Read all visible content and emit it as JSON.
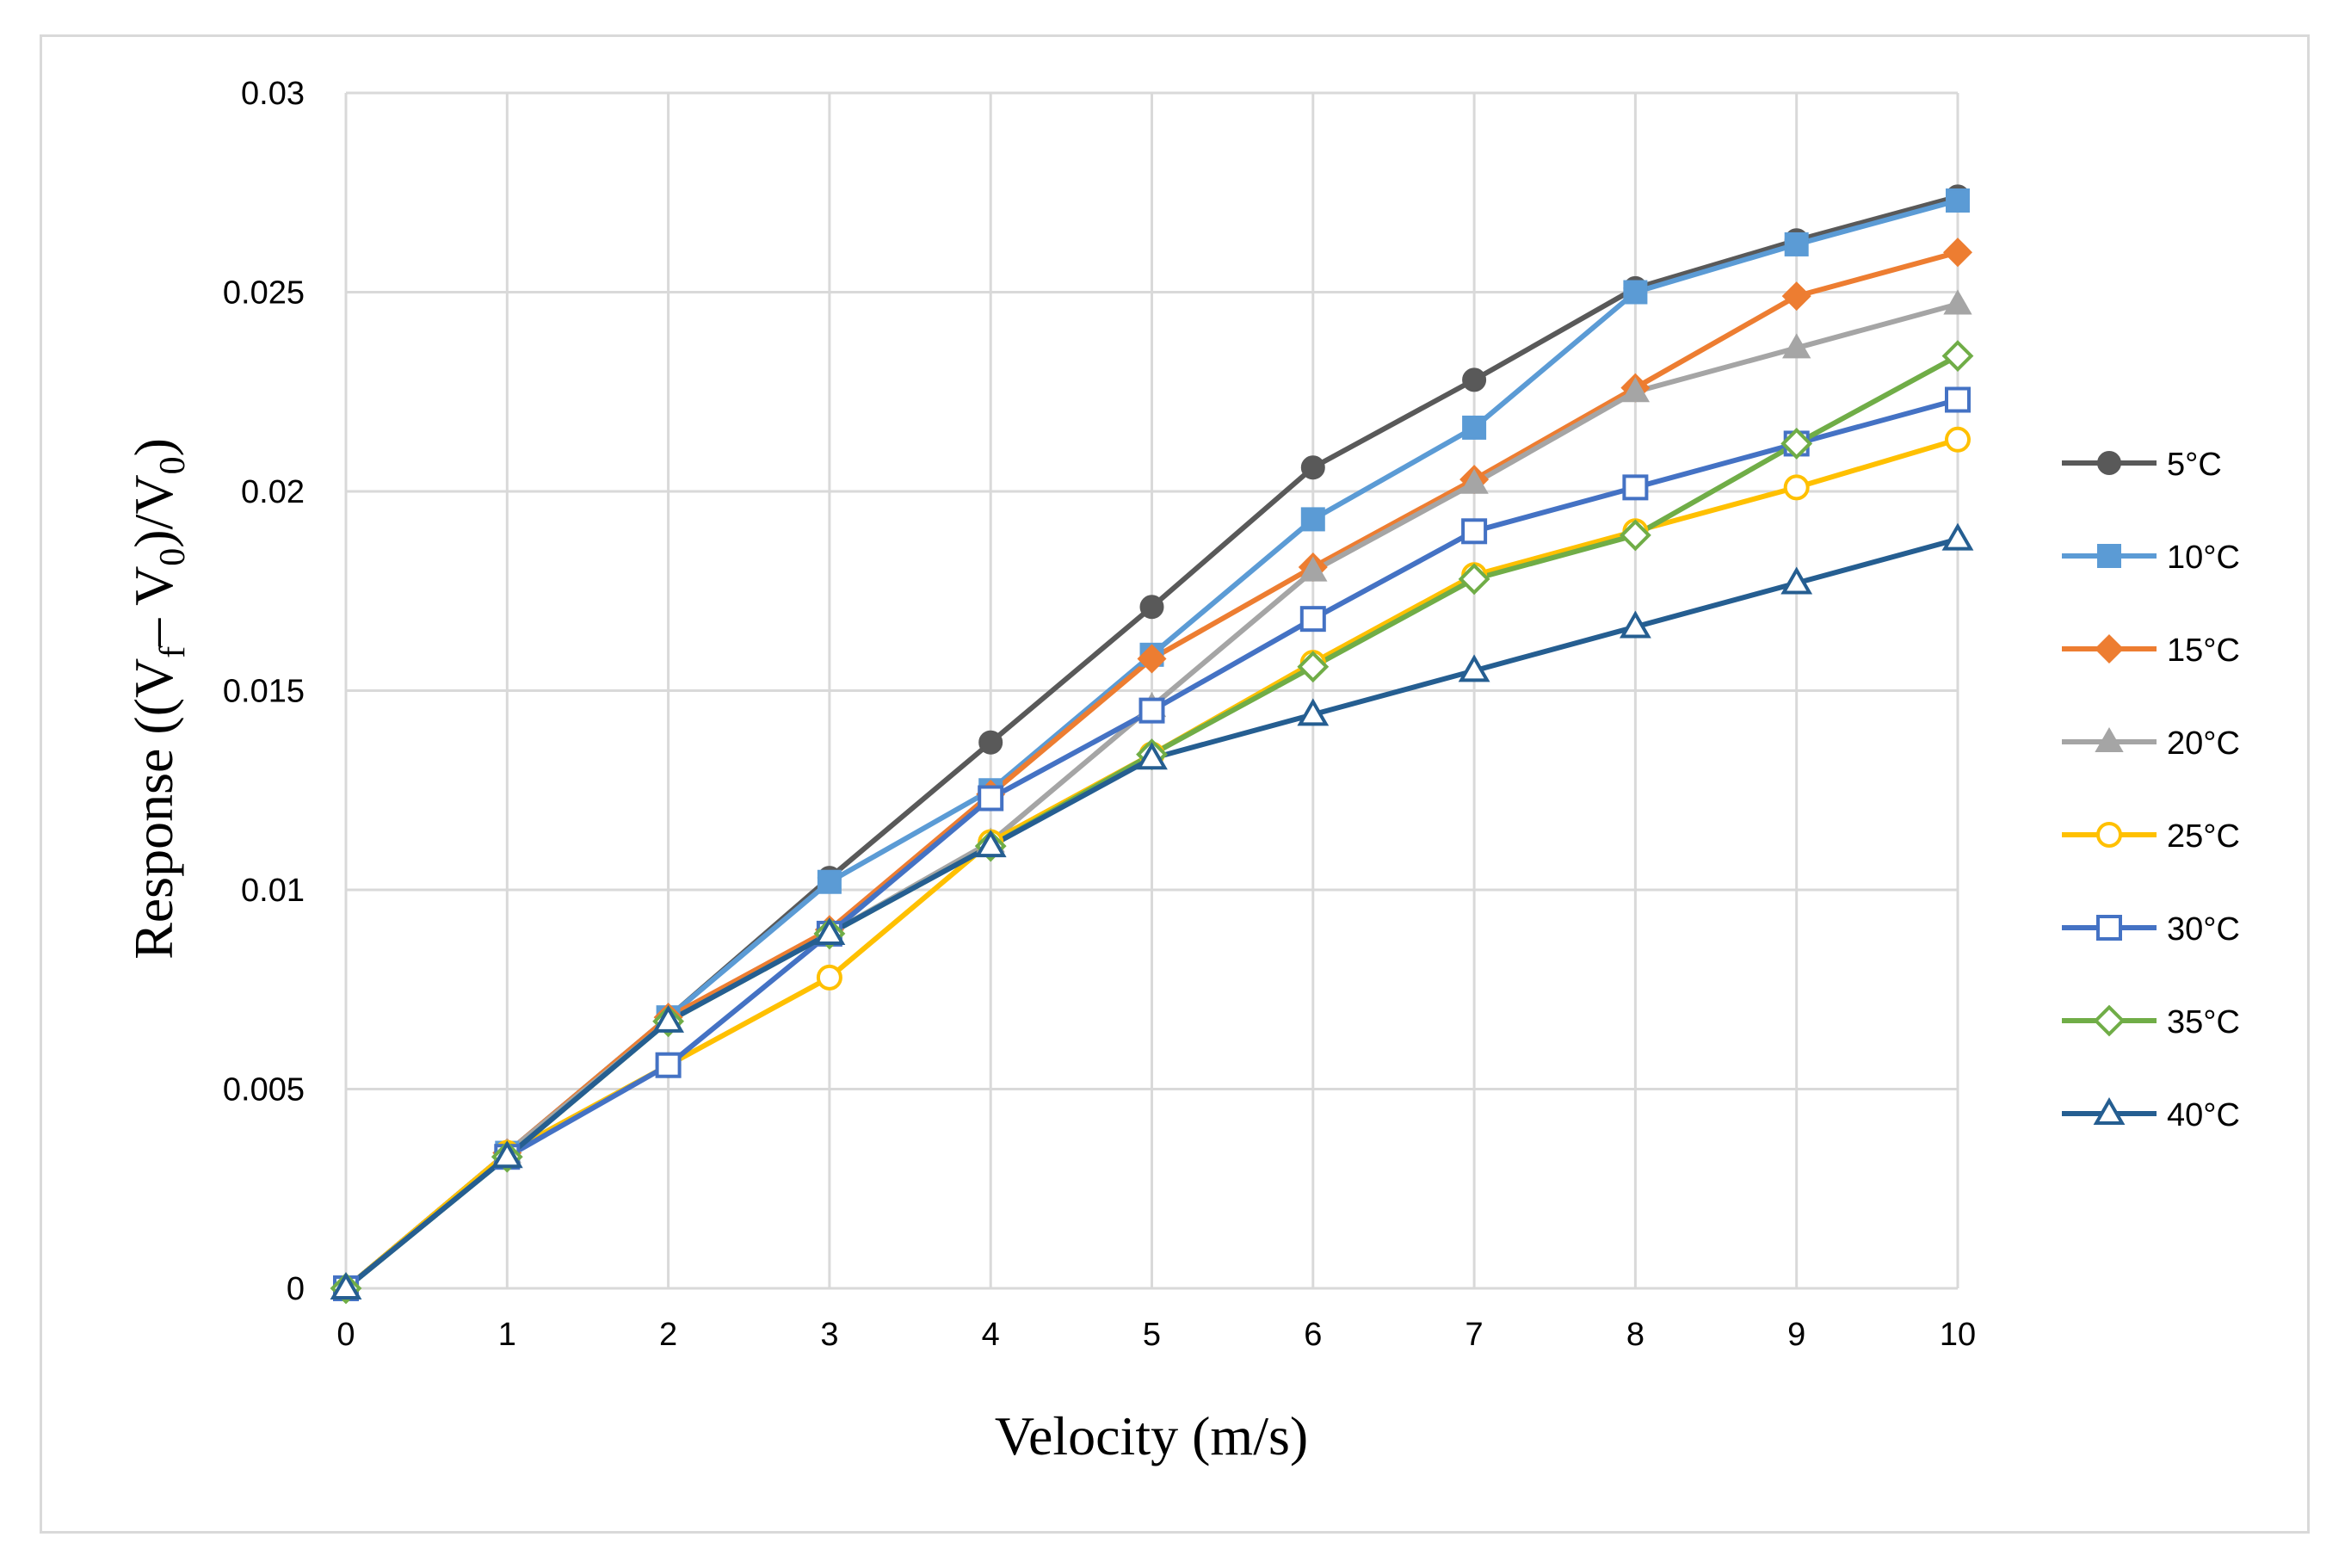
{
  "chart_data": {
    "type": "line",
    "title": "",
    "xlabel": "Velocity (m/s)",
    "ylabel_parts": {
      "prefix": "Response ((V",
      "sub_f": "f",
      "middle": "– V",
      "sub_0a": "0",
      "middle2": ")/V",
      "sub_0b": "0",
      "suffix": ")"
    },
    "xlim": [
      0,
      10
    ],
    "ylim": [
      0,
      0.03
    ],
    "x": [
      0,
      1,
      2,
      3,
      4,
      5,
      6,
      7,
      8,
      9,
      10
    ],
    "x_tick_labels": [
      "0",
      "1",
      "2",
      "3",
      "4",
      "5",
      "6",
      "7",
      "8",
      "9",
      "10"
    ],
    "y_ticks": [
      0,
      0.005,
      0.01,
      0.015,
      0.02,
      0.025,
      0.03
    ],
    "y_tick_labels": [
      "0",
      "0.005",
      "0.01",
      "0.015",
      "0.02",
      "0.025",
      "0.03"
    ],
    "grid": true,
    "legend_position": "right",
    "series": [
      {
        "name": "5°C",
        "color": "#595959",
        "marker": "circle",
        "filled": true,
        "values": [
          0,
          0.0034,
          0.0068,
          0.0103,
          0.0137,
          0.0171,
          0.0206,
          0.0228,
          0.0251,
          0.0263,
          0.0274
        ]
      },
      {
        "name": "10°C",
        "color": "#5b9bd5",
        "marker": "square",
        "filled": true,
        "values": [
          0,
          0.0034,
          0.0068,
          0.0102,
          0.0125,
          0.0159,
          0.0193,
          0.0216,
          0.025,
          0.0262,
          0.0273
        ]
      },
      {
        "name": "15°C",
        "color": "#ed7d31",
        "marker": "diamond",
        "filled": true,
        "values": [
          0,
          0.0034,
          0.0068,
          0.009,
          0.0124,
          0.0158,
          0.0181,
          0.0203,
          0.0226,
          0.0249,
          0.026
        ]
      },
      {
        "name": "20°C",
        "color": "#a5a5a5",
        "marker": "triangle",
        "filled": true,
        "values": [
          0,
          0.0034,
          0.0067,
          0.0089,
          0.0112,
          0.0146,
          0.018,
          0.0202,
          0.0225,
          0.0236,
          0.0247
        ]
      },
      {
        "name": "25°C",
        "color": "#ffc000",
        "marker": "circle",
        "filled": false,
        "values": [
          0,
          0.0034,
          0.0056,
          0.0078,
          0.0112,
          0.0134,
          0.0157,
          0.0179,
          0.019,
          0.0201,
          0.0213
        ]
      },
      {
        "name": "30°C",
        "color": "#4472c4",
        "marker": "square",
        "filled": false,
        "values": [
          0,
          0.0033,
          0.0056,
          0.0089,
          0.0123,
          0.0145,
          0.0168,
          0.019,
          0.0201,
          0.0212,
          0.0223
        ]
      },
      {
        "name": "35°C",
        "color": "#70ad47",
        "marker": "diamond",
        "filled": false,
        "values": [
          0,
          0.0033,
          0.0067,
          0.0089,
          0.0111,
          0.0134,
          0.0156,
          0.0178,
          0.0189,
          0.0212,
          0.0234
        ]
      },
      {
        "name": "40°C",
        "color": "#255e91",
        "marker": "triangle",
        "filled": false,
        "values": [
          0,
          0.0033,
          0.0067,
          0.0089,
          0.0111,
          0.0133,
          0.0144,
          0.0155,
          0.0166,
          0.0177,
          0.0188
        ]
      }
    ]
  }
}
